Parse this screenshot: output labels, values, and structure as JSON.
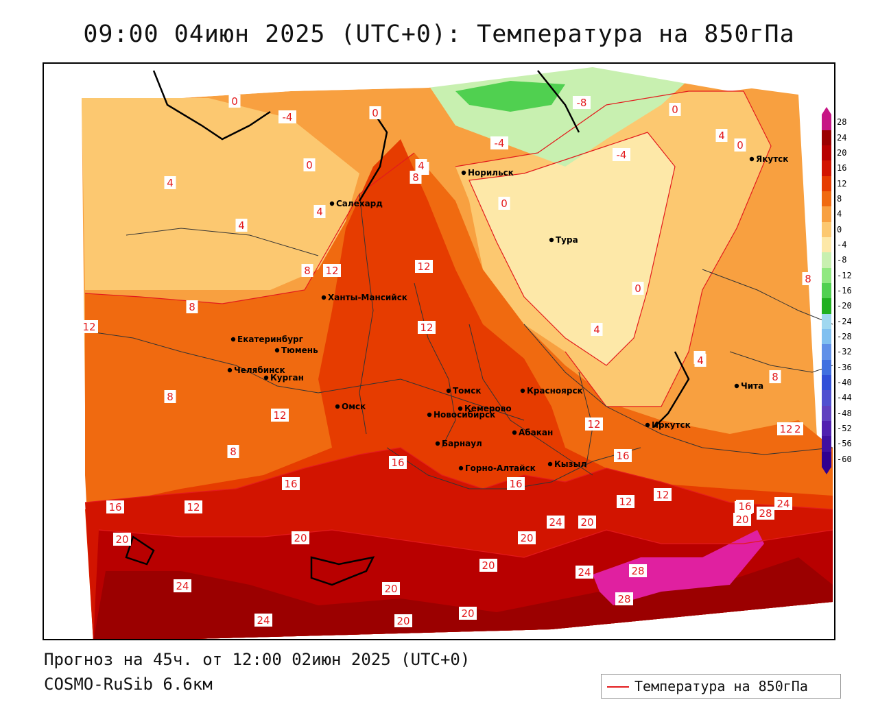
{
  "header": {
    "title": "09:00 04июн 2025 (UTC+0): Температура на 850гПа"
  },
  "footer": {
    "forecast": "Прогноз на 45ч. от 12:00 02июн 2025 (UTC+0)",
    "model": "COSMO-RuSib 6.6км"
  },
  "legend": {
    "label": "Температура на 850гПа",
    "line_color": "#e31a1c"
  },
  "colorbar": {
    "ticks": [
      "28",
      "24",
      "20",
      "16",
      "12",
      "8",
      "4",
      "0",
      "-4",
      "-8",
      "-12",
      "-16",
      "-20",
      "-24",
      "-28",
      "-32",
      "-36",
      "-40",
      "-44",
      "-48",
      "-52",
      "-56",
      "-60"
    ],
    "colors": [
      "#c71585",
      "#9b0000",
      "#b80000",
      "#d21400",
      "#e63c00",
      "#f06a10",
      "#f8a040",
      "#fcc870",
      "#fde8a8",
      "#c8f0b0",
      "#90e880",
      "#50d050",
      "#20b020",
      "#a0d8f0",
      "#80c0f0",
      "#6090e8",
      "#4070e0",
      "#3050d8",
      "#5050d0",
      "#6040c0",
      "#5020b0",
      "#4010a0",
      "#300090"
    ]
  },
  "cities": [
    {
      "name": "Салехард"
    },
    {
      "name": "Норильск"
    },
    {
      "name": "Якутск"
    },
    {
      "name": "Тура"
    },
    {
      "name": "Ханты-Мансийск"
    },
    {
      "name": "Екатеринбург"
    },
    {
      "name": "Тюмень"
    },
    {
      "name": "Челябинск"
    },
    {
      "name": "Курган"
    },
    {
      "name": "Омск"
    },
    {
      "name": "Новосибирск"
    },
    {
      "name": "Томск"
    },
    {
      "name": "Кемерово"
    },
    {
      "name": "Красноярск"
    },
    {
      "name": "Абакан"
    },
    {
      "name": "Барнаул"
    },
    {
      "name": "Горно-Алтайск"
    },
    {
      "name": "Кызыл"
    },
    {
      "name": "Иркутск"
    },
    {
      "name": "Чита"
    }
  ],
  "contour_labels": [
    "0",
    "-4",
    "0",
    "0",
    "4",
    "4",
    "4",
    "8",
    "12",
    "12",
    "-4",
    "4",
    "8",
    "-8",
    "-4",
    "0",
    "0",
    "0",
    "4",
    "8",
    "8",
    "0",
    "12",
    "8",
    "12",
    "12",
    "12",
    "8",
    "8",
    "12",
    "16",
    "16",
    "12",
    "12",
    "16",
    "16",
    "12",
    "16",
    "12",
    "20",
    "20",
    "16",
    "20",
    "24",
    "24",
    "20",
    "20",
    "20",
    "20",
    "20",
    "24",
    "24",
    "28",
    "28",
    "16",
    "20",
    "28",
    "24",
    "4",
    "4",
    "8",
    "4"
  ],
  "palette": {
    "sea": "#ffffff",
    "border": "#333333",
    "coast": "#000000",
    "isoline": "#e31a1c"
  }
}
